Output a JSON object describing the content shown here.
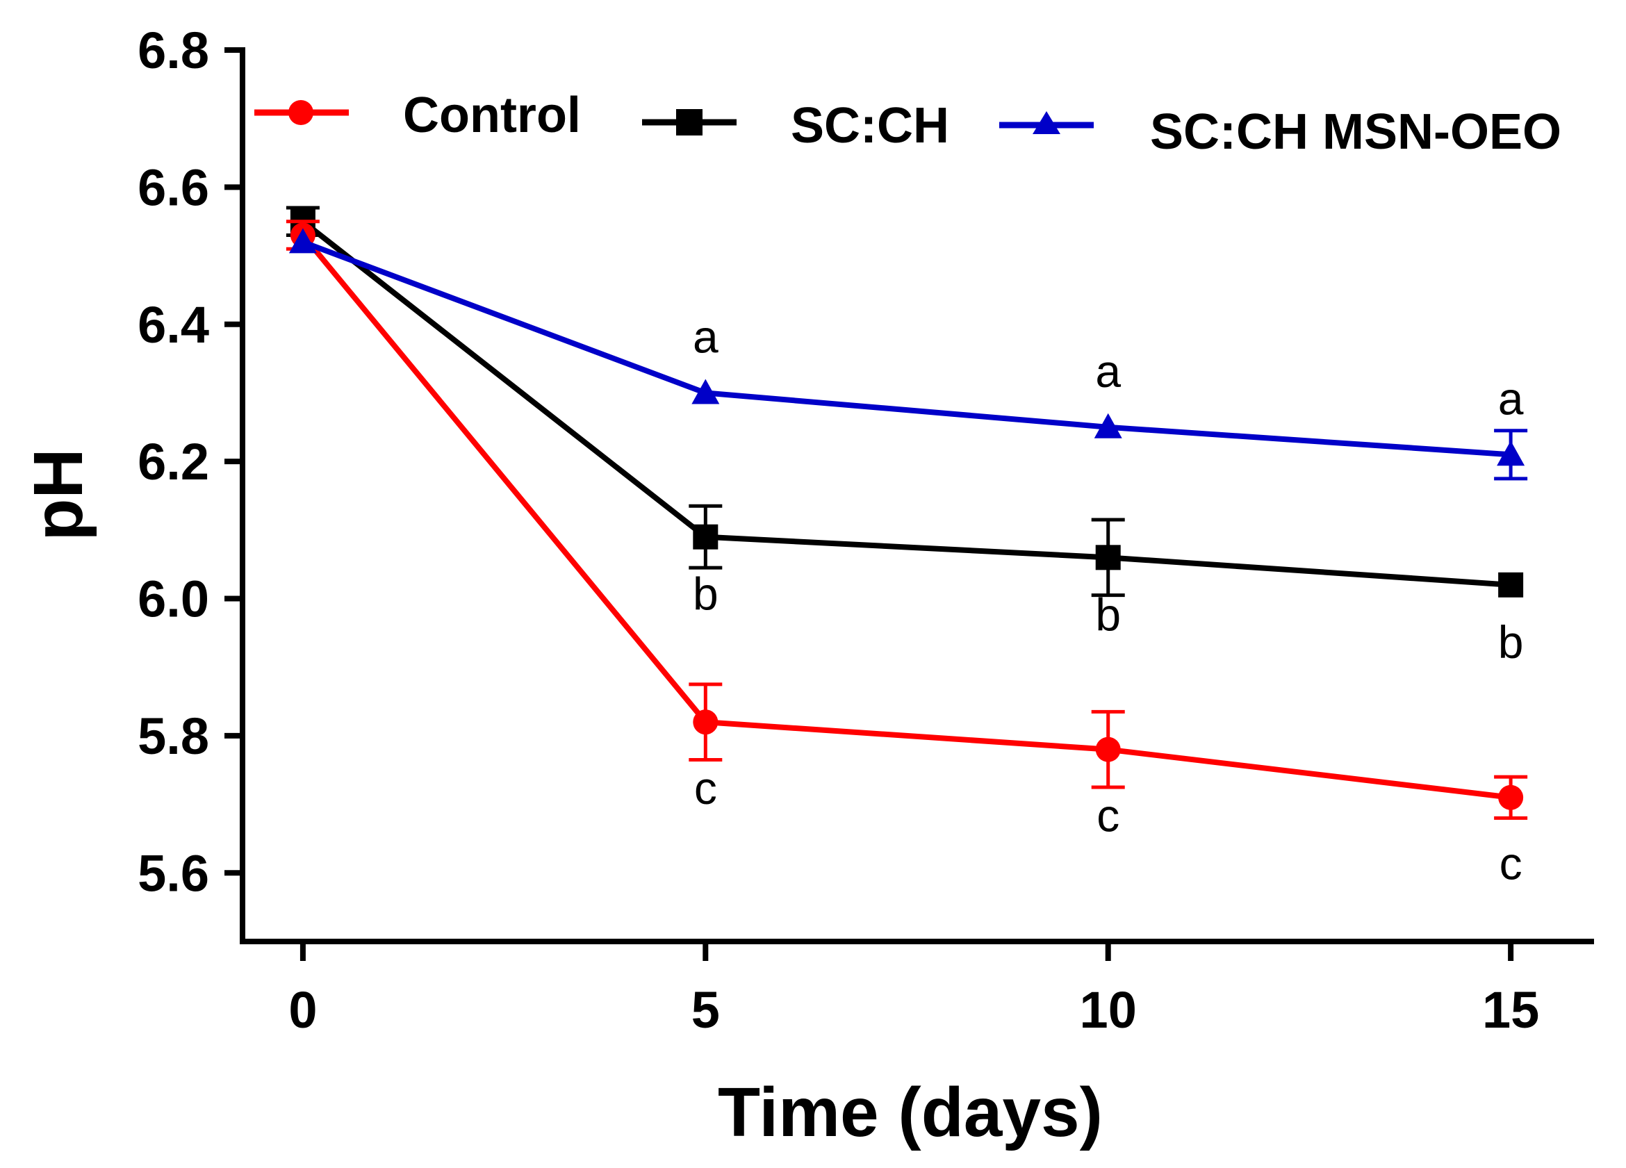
{
  "chart_data": {
    "type": "line",
    "title": "",
    "xlabel": "Time (days)",
    "ylabel": "pH",
    "x": [
      0,
      5,
      10,
      15
    ],
    "xticks": [
      "0",
      "5",
      "10",
      "15"
    ],
    "xlim": [
      -0.75,
      16.0
    ],
    "yticks": [
      "5.6",
      "5.8",
      "6.0",
      "6.2",
      "6.4",
      "6.6",
      "6.8"
    ],
    "ytick_values": [
      5.6,
      5.8,
      6.0,
      6.2,
      6.4,
      6.6,
      6.8
    ],
    "ylim": [
      5.5,
      6.8
    ],
    "grid": false,
    "legend_position": "top",
    "series": [
      {
        "name": "Control",
        "color": "#ff0000",
        "marker": "circle",
        "values": [
          6.53,
          5.82,
          5.78,
          5.71
        ],
        "errors": [
          0.02,
          0.055,
          0.055,
          0.03
        ],
        "labels": [
          "",
          "c",
          "c",
          "c"
        ]
      },
      {
        "name": "SC:CH",
        "color": "#000000",
        "marker": "square",
        "values": [
          6.55,
          6.09,
          6.06,
          6.02
        ],
        "errors": [
          0.02,
          0.045,
          0.055,
          0.0
        ],
        "labels": [
          "",
          "b",
          "b",
          "b"
        ]
      },
      {
        "name": "SC:CH MSN-OEO",
        "color": "#0000c8",
        "marker": "triangle",
        "values": [
          6.52,
          6.3,
          6.25,
          6.21
        ],
        "errors": [
          0.0,
          0.0,
          0.0,
          0.035
        ],
        "labels": [
          "",
          "a",
          "a",
          "a"
        ]
      }
    ]
  }
}
